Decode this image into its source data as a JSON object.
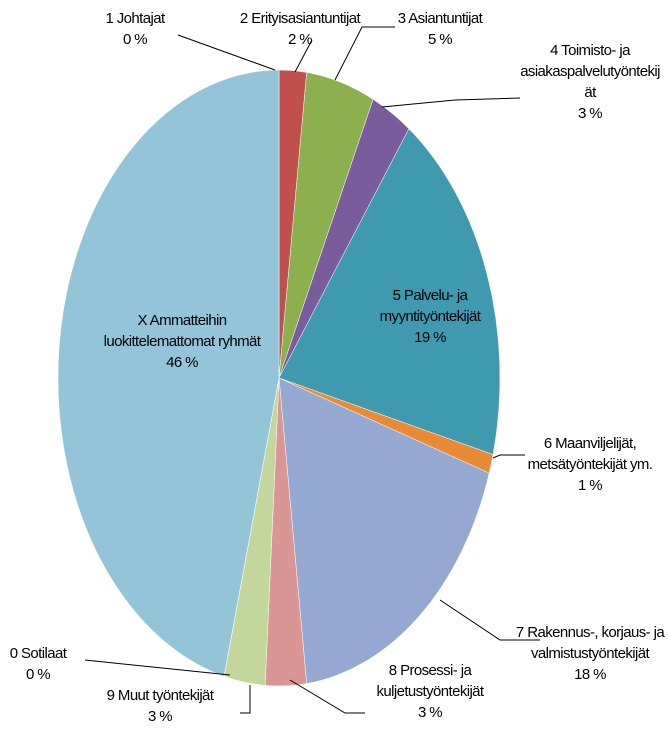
{
  "chart_data": {
    "type": "pie",
    "categories": [
      "1 Johtajat",
      "2 Erityisasiantuntijat",
      "3 Asiantuntijat",
      "4 Toimisto- ja asiakaspalvelutyöntekijät",
      "5 Palvelu- ja myyntityöntekijät",
      "6 Maanviljelijät, metsätyöntekijät ym.",
      "7 Rakennus-, korjaus- ja valmistustyöntekijät",
      "8 Prosessi- ja kuljetustyöntekijät",
      "9 Muut työntekijät",
      "0 Sotilaat",
      "X Ammatteihin luokittelemattomat ryhmät"
    ],
    "values": [
      0,
      2,
      5,
      3,
      19,
      1,
      18,
      3,
      3,
      0,
      46
    ],
    "value_labels": [
      "0 %",
      "2 %",
      "5 %",
      "3 %",
      "19 %",
      "1 %",
      "18 %",
      "3 %",
      "3 %",
      "0 %",
      "46 %"
    ],
    "colors": [
      "#c0504d",
      "#c0504d",
      "#8db04f",
      "#7a5c9c",
      "#3f9ab0",
      "#e88a36",
      "#94a8d2",
      "#d99694",
      "#c3d69b",
      "#a5a5a5",
      "#93c4d8"
    ]
  }
}
